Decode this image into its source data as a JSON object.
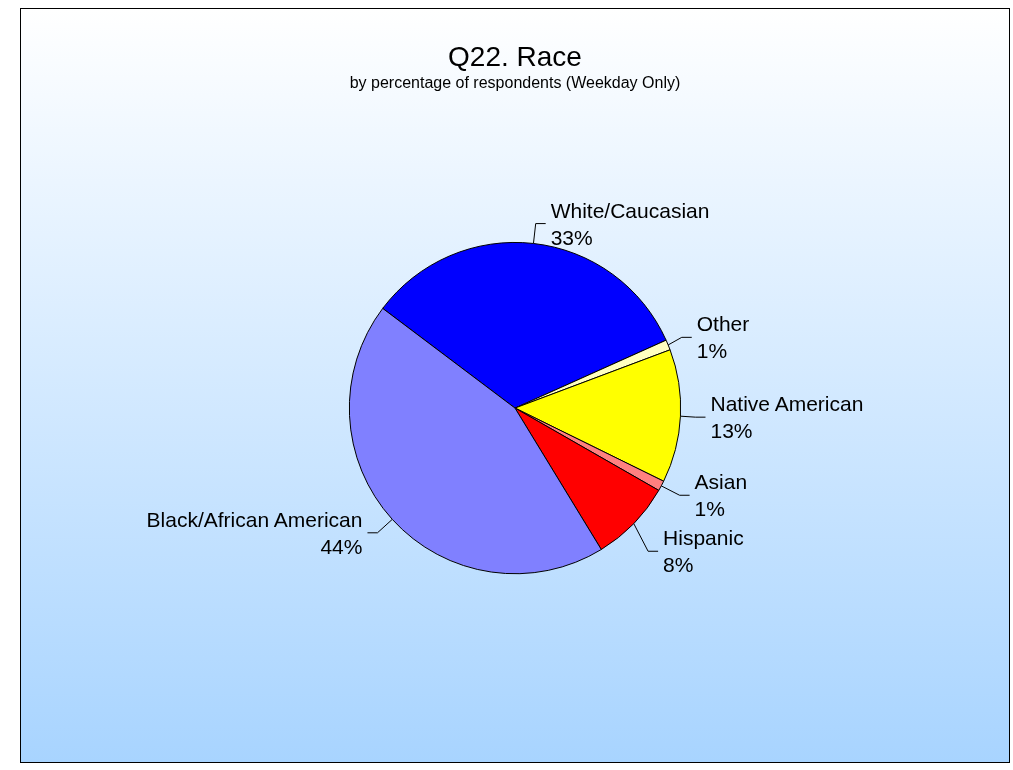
{
  "chart_data": {
    "type": "pie",
    "title": "Q22. Race",
    "subtitle": "by percentage of respondents (Weekday Only)",
    "categories": [
      "White/Caucasian",
      "Other",
      "Native American",
      "Asian",
      "Hispanic",
      "Black/African American"
    ],
    "values": [
      33,
      1,
      13,
      1,
      8,
      44
    ],
    "value_labels": [
      "33%",
      "1%",
      "13%",
      "1%",
      "8%",
      "44%"
    ],
    "colors": [
      "#0000ff",
      "#ffffc0",
      "#ffff00",
      "#ff8080",
      "#ff0000",
      "#8080ff"
    ]
  }
}
